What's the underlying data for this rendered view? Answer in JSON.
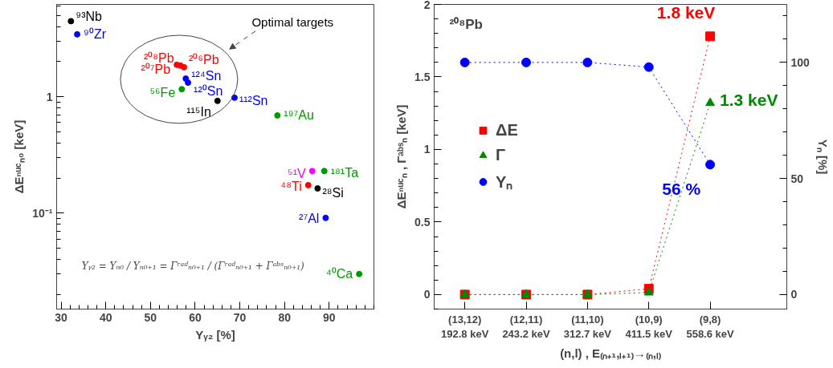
{
  "chart_data": [
    {
      "type": "scatter",
      "xlabel": "Yᵧ₂ [%]",
      "ylabel": "ΔEⁿᵘᶜₙ₀ [keV]",
      "log": "y",
      "marker": "circle",
      "x": [
        32.2,
        33.6,
        55.9,
        56.7,
        57.5,
        57.9,
        58.4,
        57.0,
        65.0,
        68.8,
        78.4,
        86.2,
        88.9,
        85.3,
        87.4,
        89.2,
        96.7
      ],
      "values": [
        4.45,
        3.43,
        1.88,
        1.85,
        1.79,
        1.43,
        1.32,
        1.16,
        0.92,
        0.98,
        0.69,
        0.23,
        0.23,
        0.174,
        0.163,
        0.091,
        0.03
      ],
      "colors": [
        "#000000",
        "#0000ff",
        "#ff0000",
        "#ff0000",
        "#ff0000",
        "#0000ff",
        "#0000ff",
        "#009900",
        "#000000",
        "#0000ff",
        "#009900",
        "#ff00ff",
        "#009900",
        "#ff0000",
        "#000000",
        "#0000ff",
        "#009900"
      ],
      "xlim": [
        29,
        100
      ],
      "ylim": [
        0.015,
        6.2
      ],
      "xticks": [
        30,
        40,
        50,
        60,
        70,
        80,
        90
      ],
      "yticks": [
        {
          "value": 0.1,
          "label": "10⁻¹"
        },
        1
      ],
      "annotations": [
        "Optimal targets",
        "Yᵧ₂ = Yₙ₀ / Yₙ₀₊₁ = Γʳᵃᵈₙ₀₊₁ / (Γʳᵃᵈₙ₀₊₁ + Γᵃᵇˢₙ₀₊₁)",
        {
          "text": "⁹³Nb",
          "x": 32.2,
          "y": 4.45
        },
        {
          "text": "⁹⁰Zr",
          "x": 33.6,
          "y": 3.43
        },
        {
          "text": "²⁰⁷Pb",
          "x": 55.9,
          "y": 1.88
        },
        {
          "text": "²⁰⁸Pb",
          "x": 56.7,
          "y": 1.85
        },
        {
          "text": "²⁰⁶Pb",
          "x": 57.5,
          "y": 1.79
        },
        {
          "text": "¹²⁴Sn",
          "x": 57.9,
          "y": 1.43
        },
        {
          "text": "¹²⁰Sn",
          "x": 58.4,
          "y": 1.32
        },
        {
          "text": "⁵⁶Fe",
          "x": 57.0,
          "y": 1.16
        },
        {
          "text": "¹¹⁵In",
          "x": 65.0,
          "y": 0.92
        },
        {
          "text": "¹¹²Sn",
          "x": 68.8,
          "y": 0.98
        },
        {
          "text": "¹⁹⁷Au",
          "x": 78.4,
          "y": 0.69
        },
        {
          "text": "⁵¹V",
          "x": 86.2,
          "y": 0.23
        },
        {
          "text": "¹⁸¹Ta",
          "x": 88.9,
          "y": 0.23
        },
        {
          "text": "⁴⁸Ti",
          "x": 85.3,
          "y": 0.174
        },
        {
          "text": "²⁸Si",
          "x": 87.4,
          "y": 0.163
        },
        {
          "text": "²⁷Al",
          "x": 89.2,
          "y": 0.091
        },
        {
          "text": "⁴⁰Ca",
          "x": 96.7,
          "y": 0.03
        }
      ]
    },
    {
      "type": "line",
      "categories": [
        "(13,12)\n192.8 keV",
        "(12,11)\n243.2 keV",
        "(11,10)\n312.7 keV",
        "(10,9)\n411.5 keV",
        "(9,8)\n558.6 keV"
      ],
      "xlabel": "(n,l) , E₍ₙ₊₁,ₗ₊₁₎→₍ₙ,ₗ₎",
      "ylabel": "ΔEⁿᵘᶜₙ , Γᵃᵇˢₙ [keV]",
      "y2label": "Yₙ [%]",
      "ylim": [
        -0.1,
        2
      ],
      "yticks": [
        0,
        0.5,
        1,
        1.5,
        2
      ],
      "y2lim": [
        -6.25,
        125
      ],
      "y2ticks": [
        0,
        50,
        100
      ],
      "legend": "left",
      "line_style": "dotted",
      "annotations": [
        "²⁰⁸Pb"
      ],
      "series": [
        {
          "name": "ΔE",
          "color": "#ff0000",
          "marker": "square",
          "values": [
            0,
            0,
            0,
            0.04,
            1.78
          ],
          "value_labels": [
            null,
            null,
            null,
            null,
            "1.8 keV"
          ]
        },
        {
          "name": "Γ",
          "color": "#008800",
          "marker": "triangle",
          "values": [
            0,
            0,
            0,
            0.014,
            1.32
          ],
          "value_labels": [
            null,
            null,
            null,
            null,
            "1.3 keV"
          ]
        },
        {
          "name": "Yₙ",
          "color": "#0000ff",
          "marker": "circle",
          "axis": "y2",
          "values": [
            100,
            100,
            100,
            98,
            56
          ],
          "value_labels": [
            null,
            null,
            null,
            null,
            "56 %"
          ]
        }
      ]
    }
  ]
}
